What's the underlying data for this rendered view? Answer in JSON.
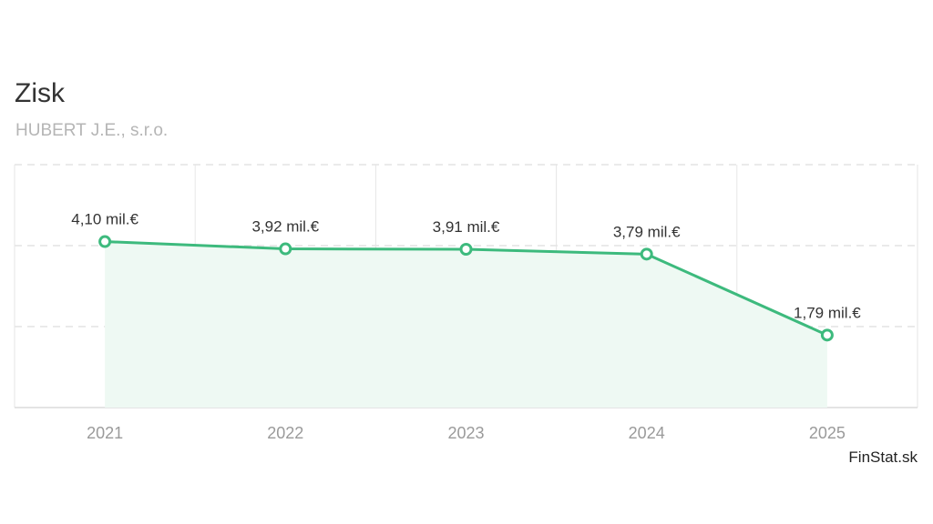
{
  "chart_data": {
    "type": "area",
    "title": "Zisk",
    "subtitle": "HUBERT J.E., s.r.o.",
    "categories": [
      "2021",
      "2022",
      "2023",
      "2024",
      "2025"
    ],
    "values": [
      4.1,
      3.92,
      3.91,
      3.79,
      1.79
    ],
    "data_labels": [
      "4,10 mil.€",
      "3,92 mil.€",
      "3,91 mil.€",
      "3,79 mil.€",
      "1,79 mil.€"
    ],
    "unit": "mil.€",
    "ylim": [
      0,
      6
    ],
    "grid": true,
    "legend": "none",
    "colors": {
      "line": "#3dba7d",
      "fill": "#eef9f3",
      "grid": "#dddddd"
    }
  },
  "source": "FinStat.sk"
}
